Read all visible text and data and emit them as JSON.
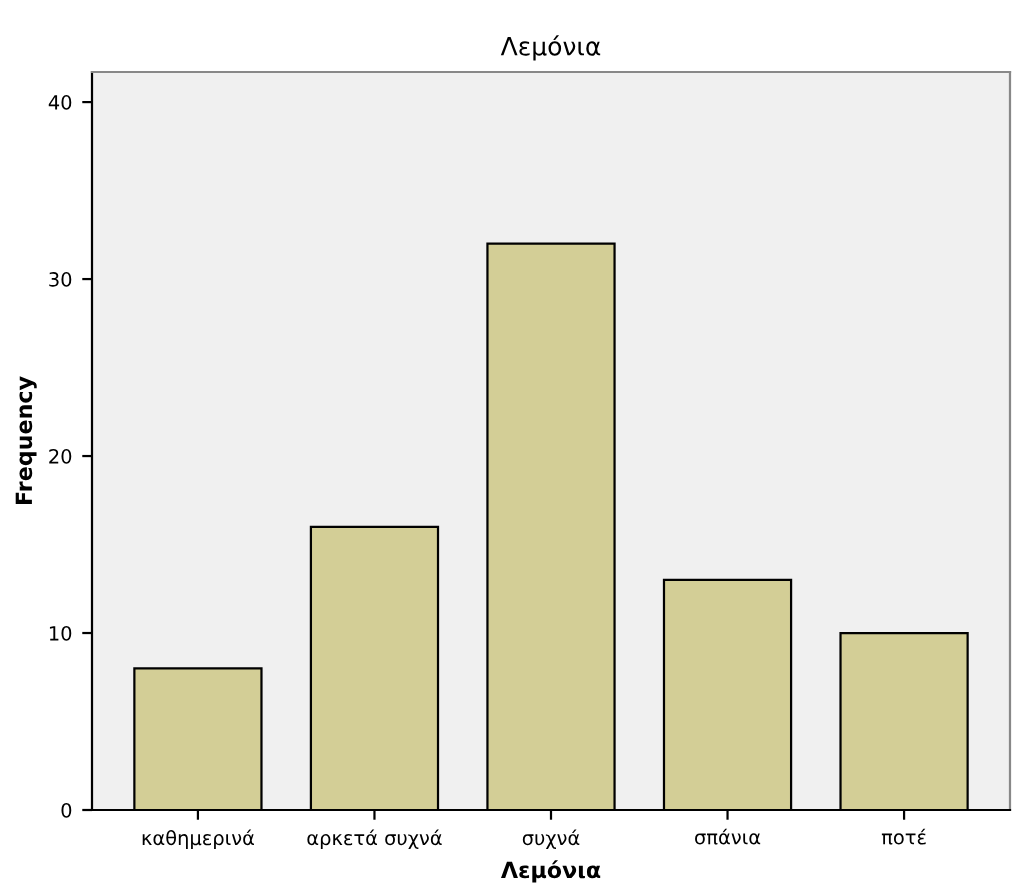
{
  "chart_data": {
    "type": "bar",
    "title": "Λεμόνια",
    "xlabel": "Λεμόνια",
    "ylabel": "Frequency",
    "categories": [
      "καθημερινά",
      "αρκετά συχνά",
      "συχνά",
      "σπάνια",
      "ποτέ"
    ],
    "values": [
      8,
      16,
      32,
      13,
      10
    ],
    "color": "#d3ce96",
    "ylim": [
      0,
      41.7
    ],
    "yticks": [
      0,
      10,
      20,
      30,
      40
    ],
    "grid": false,
    "legend": false
  }
}
